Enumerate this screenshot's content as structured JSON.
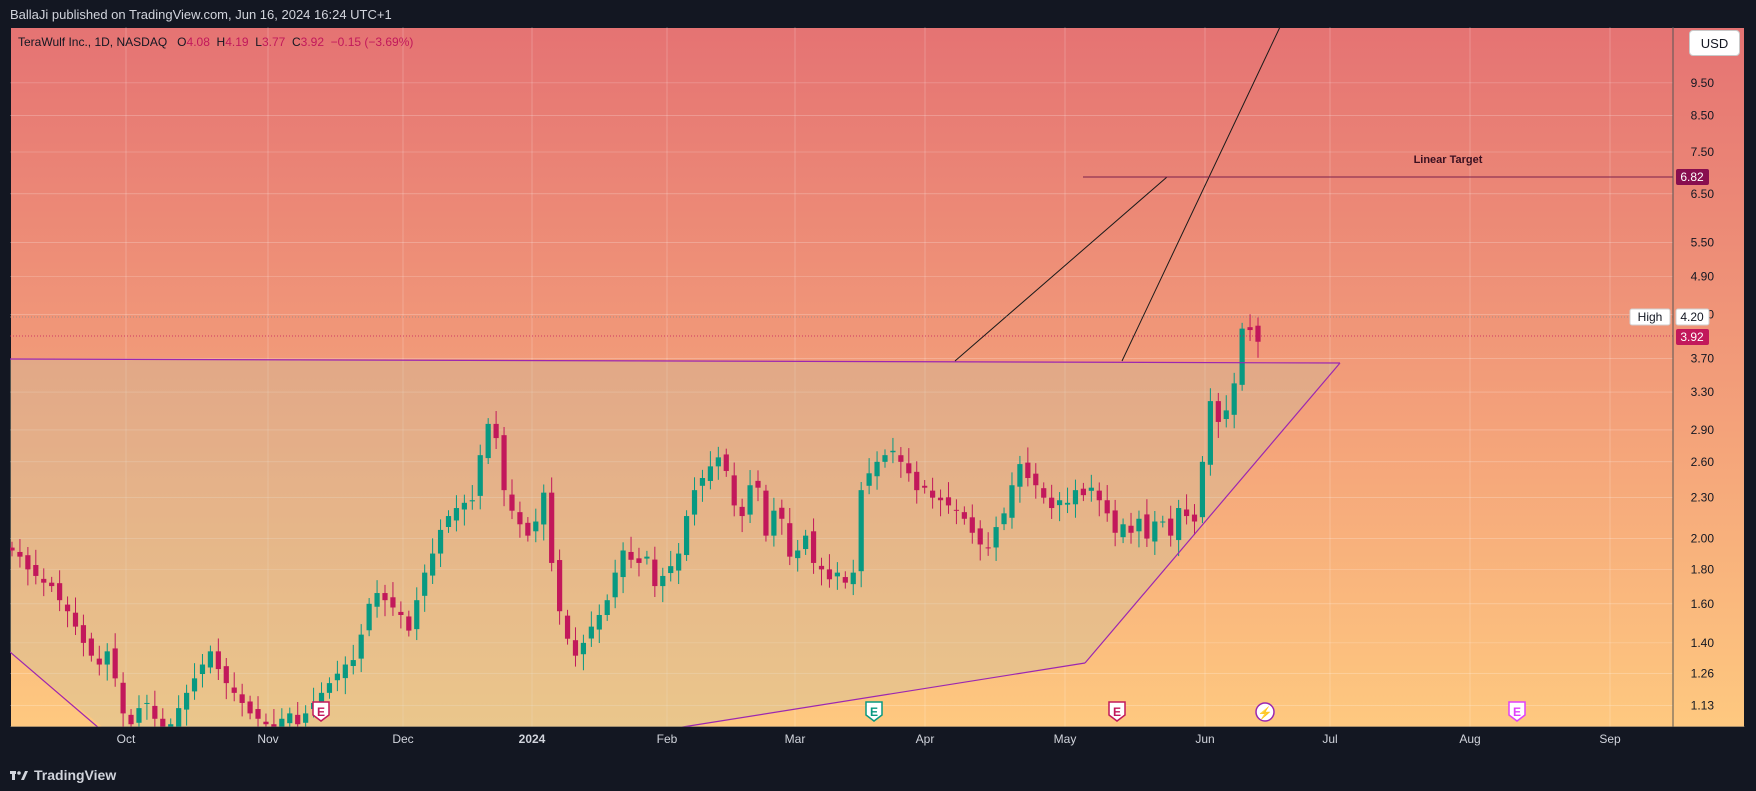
{
  "header": {
    "publisher": "BallaJi published on TradingView.com, Jun 16, 2024 16:24 UTC+1"
  },
  "legend": {
    "symbol": "TeraWulf Inc., 1D, NASDAQ",
    "o_label": "O",
    "o": "4.08",
    "h_label": "H",
    "h": "4.19",
    "l_label": "L",
    "l": "3.77",
    "c_label": "C",
    "c": "3.92",
    "change": "−0.15 (−3.69%)"
  },
  "currency": "USD",
  "footer": {
    "brand": "TradingView"
  },
  "annotations": {
    "linear_target": "Linear Target",
    "high_label": "High"
  },
  "colors": {
    "up": "#089981",
    "down": "#c2185b",
    "pattern": "#9c27b0",
    "bg_top": "#e57373",
    "bg_bottom": "#ffcc80"
  },
  "icons": [
    "earnings-icon",
    "dividend-icon",
    "tradingview-logo-icon"
  ],
  "events": [
    {
      "label": "E",
      "month": "Nov",
      "color": "#c2185b"
    },
    {
      "label": "E",
      "month": "Mar",
      "color": "#089981"
    },
    {
      "label": "E",
      "month": "May",
      "color": "#c2185b"
    },
    {
      "label": "⚡",
      "month": "Jun",
      "color": "#9c27b0"
    },
    {
      "label": "E",
      "month": "Aug",
      "color": "#e040fb"
    }
  ],
  "chart_data": {
    "type": "candlestick",
    "title": "TeraWulf Inc., 1D, NASDAQ",
    "y_scale": "log",
    "ylim": [
      1.05,
      11.5
    ],
    "y_ticks": [
      "9.50",
      "8.50",
      "7.50",
      "6.50",
      "5.50",
      "4.90",
      "4.30",
      "3.70",
      "3.30",
      "2.90",
      "2.60",
      "2.30",
      "2.00",
      "1.80",
      "1.60",
      "1.40",
      "1.26",
      "1.13"
    ],
    "x_ticks": [
      "Oct",
      "Nov",
      "Dec",
      "2024",
      "Feb",
      "Mar",
      "Apr",
      "May",
      "Jun",
      "Jul",
      "Aug",
      "Sep"
    ],
    "price_labels": {
      "target": "6.82",
      "high": "4.20",
      "last": "3.92"
    },
    "closes": [
      1.92,
      1.88,
      1.8,
      1.76,
      1.72,
      1.7,
      1.62,
      1.56,
      1.48,
      1.4,
      1.34,
      1.3,
      1.36,
      1.24,
      1.1,
      1.06,
      1.12,
      1.14,
      1.08,
      1.02,
      1.06,
      1.12,
      1.18,
      1.24,
      1.3,
      1.36,
      1.28,
      1.22,
      1.18,
      1.14,
      1.1,
      1.08,
      1.06,
      1.04,
      1.08,
      1.1,
      1.06,
      1.1,
      1.14,
      1.18,
      1.22,
      1.26,
      1.3,
      1.32,
      1.44,
      1.6,
      1.66,
      1.62,
      1.58,
      1.54,
      1.46,
      1.62,
      1.78,
      1.9,
      2.06,
      2.16,
      2.22,
      2.26,
      2.28,
      2.66,
      2.96,
      2.82,
      2.36,
      2.2,
      2.1,
      2.02,
      2.12,
      2.34,
      1.84,
      1.56,
      1.42,
      1.34,
      1.4,
      1.48,
      1.54,
      1.62,
      1.78,
      1.92,
      1.86,
      1.84,
      1.88,
      1.7,
      1.76,
      1.82,
      1.9,
      2.16,
      2.36,
      2.46,
      2.56,
      2.64,
      2.52,
      2.24,
      2.16,
      2.4,
      2.38,
      2.02,
      2.2,
      2.14,
      1.88,
      1.92,
      2.02,
      1.84,
      1.8,
      1.74,
      1.78,
      1.72,
      1.78,
      2.36,
      2.5,
      2.6,
      2.66,
      2.7,
      2.6,
      2.5,
      2.36,
      2.38,
      2.3,
      2.28,
      2.24,
      2.2,
      2.14,
      2.04,
      1.96,
      1.94,
      2.08,
      2.18,
      2.4,
      2.58,
      2.46,
      2.4,
      2.3,
      2.22,
      2.28,
      2.26,
      2.36,
      2.32,
      2.38,
      2.28,
      2.18,
      2.04,
      2.1,
      2.04,
      2.14,
      2.0,
      2.12,
      2.12,
      2.02,
      2.22,
      2.16,
      2.12,
      2.6,
      3.2,
      2.98,
      3.1,
      3.4,
      4.1,
      4.08,
      3.92
    ]
  }
}
